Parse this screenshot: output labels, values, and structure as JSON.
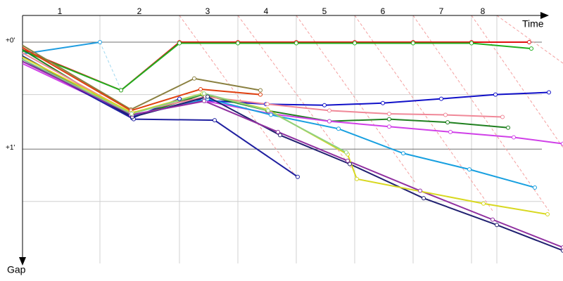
{
  "chart_data": {
    "type": "line",
    "x_label": "Time",
    "y_label": "Gap",
    "xlim": [
      0,
      768
    ],
    "ylim": [
      -0.25,
      2.07
    ],
    "xticks": [
      {
        "value": 53,
        "label": "1"
      },
      {
        "value": 166,
        "label": "2"
      },
      {
        "value": 263,
        "label": "3"
      },
      {
        "value": 346,
        "label": "4"
      },
      {
        "value": 429,
        "label": "5"
      },
      {
        "value": 512,
        "label": "6"
      },
      {
        "value": 595,
        "label": "7"
      },
      {
        "value": 654,
        "label": "8"
      }
    ],
    "xgrid": [
      110,
      223,
      306,
      389,
      472,
      555,
      638,
      674
    ],
    "yticks": [
      {
        "value": 0,
        "label": "+0'"
      },
      {
        "value": 1,
        "label": "+1'"
      }
    ],
    "ygrid_minor": [
      0.49,
      1.49
    ],
    "series": [
      {
        "color": "#e01010",
        "x": [
          0,
          140,
          223,
          306,
          389,
          472,
          555,
          638,
          720
        ],
        "y": [
          0.07,
          0.45,
          0,
          0,
          0,
          0,
          0,
          0,
          0
        ]
      },
      {
        "color": "#20b020",
        "x": [
          0,
          140,
          223,
          306,
          389,
          472,
          555,
          638,
          723
        ],
        "y": [
          0.08,
          0.45,
          0.01,
          0.01,
          0.01,
          0.01,
          0.01,
          0.01,
          0.06
        ]
      },
      {
        "color": "#1f9de0",
        "x": [
          0,
          110
        ],
        "y": [
          0.11,
          0
        ]
      },
      {
        "color": "#1010c8",
        "x": [
          0,
          156,
          223,
          346,
          429,
          512,
          595,
          672,
          748
        ],
        "y": [
          0.13,
          0.71,
          0.53,
          0.58,
          0.59,
          0.57,
          0.53,
          0.49,
          0.47
        ]
      },
      {
        "color": "#8a8040",
        "x": [
          0,
          154,
          244,
          338
        ],
        "y": [
          0.03,
          0.63,
          0.34,
          0.45
        ]
      },
      {
        "color": "#e04010",
        "x": [
          0,
          154,
          253,
          338
        ],
        "y": [
          0.05,
          0.64,
          0.44,
          0.49
        ]
      },
      {
        "color": "#208020",
        "x": [
          0,
          156,
          256,
          348,
          436,
          521,
          604,
          690
        ],
        "y": [
          0.07,
          0.7,
          0.49,
          0.64,
          0.74,
          0.72,
          0.75,
          0.8
        ]
      },
      {
        "color": "#f08898",
        "x": [
          0,
          154,
          260,
          348,
          436,
          521,
          601,
          682
        ],
        "y": [
          0.1,
          0.66,
          0.51,
          0.58,
          0.64,
          0.67,
          0.68,
          0.7
        ]
      },
      {
        "color": "#d040e8",
        "x": [
          0,
          154,
          260,
          353,
          436,
          521,
          608,
          698,
          768
        ],
        "y": [
          0.2,
          0.68,
          0.55,
          0.67,
          0.74,
          0.79,
          0.84,
          0.89,
          0.95
        ]
      },
      {
        "color": "#18a0e0",
        "x": [
          0,
          156,
          263,
          353,
          449,
          541,
          635,
          728
        ],
        "y": [
          0.16,
          0.69,
          0.53,
          0.68,
          0.81,
          1.04,
          1.19,
          1.36
        ]
      },
      {
        "color": "#2020a0",
        "x": [
          0,
          158,
          273,
          391
        ],
        "y": [
          0.16,
          0.72,
          0.73,
          1.26
        ]
      },
      {
        "color": "#202070",
        "x": [
          0,
          156,
          263,
          366,
          465,
          570,
          674,
          768
        ],
        "y": [
          0.13,
          0.7,
          0.51,
          0.87,
          1.14,
          1.46,
          1.71,
          1.95
        ]
      },
      {
        "color": "#9030a0",
        "x": [
          0,
          156,
          258,
          363,
          462,
          565,
          668,
          768
        ],
        "y": [
          0.18,
          0.68,
          0.55,
          0.84,
          1.11,
          1.39,
          1.66,
          1.92
        ]
      },
      {
        "color": "#d8d820",
        "x": [
          0,
          156,
          256,
          348,
          462,
          475,
          655,
          746
        ],
        "y": [
          0.14,
          0.66,
          0.48,
          0.63,
          1.05,
          1.28,
          1.51,
          1.61
        ]
      },
      {
        "color": "#90d080",
        "x": [
          0,
          155,
          258,
          349,
          460
        ],
        "y": [
          0.16,
          0.67,
          0.48,
          0.64,
          1.03
        ]
      }
    ]
  }
}
